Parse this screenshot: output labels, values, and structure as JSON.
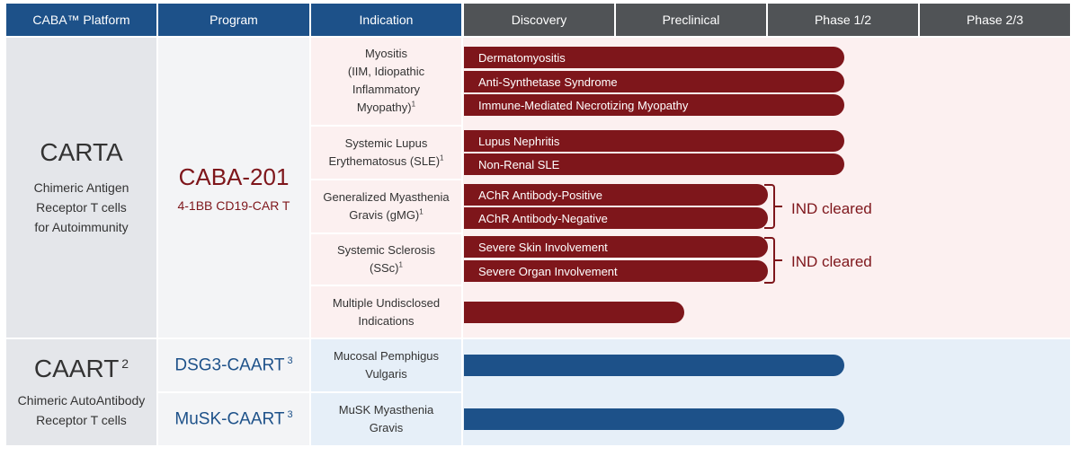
{
  "headers": {
    "platform": "CABA™ Platform",
    "program": "Program",
    "indication": "Indication",
    "phases": [
      "Discovery",
      "Preclinical",
      "Phase 1/2",
      "Phase 2/3"
    ]
  },
  "platforms": [
    {
      "name": "CARTA",
      "description_lines": [
        "Chimeric Antigen",
        "Receptor T cells",
        "for Autoimmunity"
      ]
    },
    {
      "name": "CAART",
      "superscript": "2",
      "description_lines": [
        "Chimeric AutoAntibody",
        "Receptor T cells"
      ]
    }
  ],
  "programs": [
    {
      "name": "CABA-201",
      "subtitle": "4-1BB CD19-CAR T"
    },
    {
      "name": "DSG3-CAART",
      "superscript": "3"
    },
    {
      "name": "MuSK-CAART",
      "superscript": "3"
    }
  ],
  "indications": [
    {
      "lines": [
        "Myositis",
        "(IIM, Idiopathic",
        "Inflammatory",
        "Myopathy)"
      ],
      "footnote": "1"
    },
    {
      "lines": [
        "Systemic Lupus",
        "Erythematosus (SLE)"
      ],
      "footnote": "1"
    },
    {
      "lines": [
        "Generalized Myasthenia",
        "Gravis (gMG)"
      ],
      "footnote": "1"
    },
    {
      "lines": [
        "Systemic Sclerosis",
        "(SSc)"
      ],
      "footnote": "1"
    },
    {
      "lines": [
        "Multiple Undisclosed",
        "Indications"
      ],
      "footnote": ""
    },
    {
      "lines": [
        "Mucosal Pemphigus",
        "Vulgaris"
      ],
      "footnote": ""
    },
    {
      "lines": [
        "MuSK Myasthenia",
        "Gravis"
      ],
      "footnote": ""
    }
  ],
  "annotations": {
    "ind_cleared_1": "IND cleared",
    "ind_cleared_2": "IND cleared"
  },
  "colors": {
    "carta_program": "#7e161b",
    "caart_program": "#1d5189",
    "header_blue": "#1d5189",
    "header_gray": "#505356",
    "carta_bg": "#fcf0f0",
    "caart_bg": "#e6eff8"
  },
  "chart_data": {
    "type": "bar",
    "orientation": "horizontal",
    "stages": [
      "Discovery",
      "Preclinical",
      "Phase 1/2",
      "Phase 2/3"
    ],
    "series": [
      {
        "name": "Dermatomyositis",
        "program": "CABA-201",
        "stage": "Phase 1/2",
        "value": 2.5,
        "color": "#7e161b"
      },
      {
        "name": "Anti-Synthetase Syndrome",
        "program": "CABA-201",
        "stage": "Phase 1/2",
        "value": 2.5,
        "color": "#7e161b"
      },
      {
        "name": "Immune-Mediated Necrotizing Myopathy",
        "program": "CABA-201",
        "stage": "Phase 1/2",
        "value": 2.5,
        "color": "#7e161b"
      },
      {
        "name": "Lupus Nephritis",
        "program": "CABA-201",
        "stage": "Phase 1/2",
        "value": 2.5,
        "color": "#7e161b"
      },
      {
        "name": "Non-Renal SLE",
        "program": "CABA-201",
        "stage": "Phase 1/2",
        "value": 2.5,
        "color": "#7e161b"
      },
      {
        "name": "AChR Antibody-Positive",
        "program": "CABA-201",
        "stage": "Preclinical",
        "value": 2.0,
        "color": "#7e161b"
      },
      {
        "name": "AChR Antibody-Negative",
        "program": "CABA-201",
        "stage": "Preclinical",
        "value": 2.0,
        "color": "#7e161b"
      },
      {
        "name": "Severe Skin Involvement",
        "program": "CABA-201",
        "stage": "Preclinical",
        "value": 2.0,
        "color": "#7e161b"
      },
      {
        "name": "Severe Organ Involvement",
        "program": "CABA-201",
        "stage": "Preclinical",
        "value": 2.0,
        "color": "#7e161b"
      },
      {
        "name": "",
        "program": "CABA-201",
        "stage": "Preclinical",
        "value": 1.45,
        "color": "#7e161b"
      },
      {
        "name": "",
        "program": "DSG3-CAART",
        "stage": "Phase 1/2",
        "value": 2.5,
        "color": "#1d5189"
      },
      {
        "name": "",
        "program": "MuSK-CAART",
        "stage": "Phase 1/2",
        "value": 2.5,
        "color": "#1d5189"
      }
    ]
  }
}
